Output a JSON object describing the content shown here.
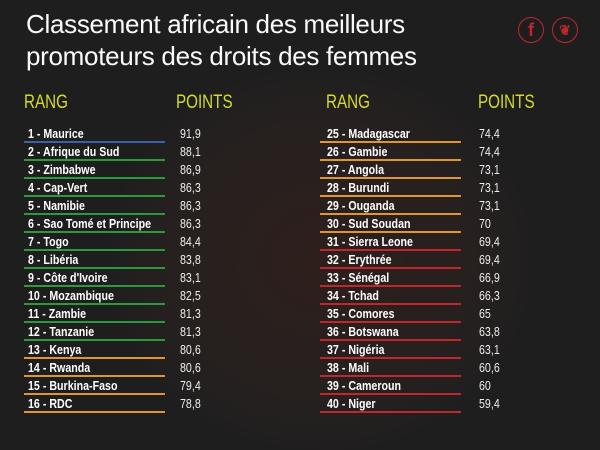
{
  "title": [
    "Classement africain des meilleurs",
    "promoteurs des droits des femmes"
  ],
  "social": [
    {
      "icon": "facebook-icon",
      "glyph": "f"
    },
    {
      "icon": "twitter-icon",
      "glyph": "🐦"
    }
  ],
  "headers": {
    "rank": "RANG",
    "points": "POINTS"
  },
  "colors": {
    "blue": "#3d5ea8",
    "green": "#2c9a3c",
    "orange": "#e0962a",
    "red": "#c0272d",
    "header": "#d4dc2a"
  },
  "left": [
    {
      "label": "1 - Maurice",
      "points": "91,9",
      "color": "blue"
    },
    {
      "label": "2 - Afrique du Sud",
      "points": "88,1",
      "color": "green"
    },
    {
      "label": "3 - Zimbabwe",
      "points": "86,9",
      "color": "green"
    },
    {
      "label": "4 - Cap-Vert",
      "points": "86,3",
      "color": "green"
    },
    {
      "label": "5 - Namibie",
      "points": "86,3",
      "color": "green"
    },
    {
      "label": "6 - Sao Tomé et Principe",
      "points": "86,3",
      "color": "green"
    },
    {
      "label": "7 - Togo",
      "points": "84,4",
      "color": "green"
    },
    {
      "label": "8 - Libéria",
      "points": "83,8",
      "color": "green"
    },
    {
      "label": "9 - Côte d'Ivoire",
      "points": "83,1",
      "color": "green"
    },
    {
      "label": "10 - Mozambique",
      "points": "82,5",
      "color": "green"
    },
    {
      "label": "11 - Zambie",
      "points": "81,3",
      "color": "green"
    },
    {
      "label": "12 - Tanzanie",
      "points": "81,3",
      "color": "green"
    },
    {
      "label": "13 - Kenya",
      "points": "80,6",
      "color": "orange"
    },
    {
      "label": "14 - Rwanda",
      "points": "80,6",
      "color": "orange"
    },
    {
      "label": "15 - Burkina-Faso",
      "points": "79,4",
      "color": "orange"
    },
    {
      "label": "16 - RDC",
      "points": "78,8",
      "color": "orange"
    }
  ],
  "right": [
    {
      "label": "25 - Madagascar",
      "points": "74,4",
      "color": "orange"
    },
    {
      "label": "26 - Gambie",
      "points": "74,4",
      "color": "orange"
    },
    {
      "label": "27 - Angola",
      "points": "73,1",
      "color": "orange"
    },
    {
      "label": "28 - Burundi",
      "points": "73,1",
      "color": "orange"
    },
    {
      "label": "29 - Ouganda",
      "points": "73,1",
      "color": "orange"
    },
    {
      "label": "30 - Sud Soudan",
      "points": "70",
      "color": "orange"
    },
    {
      "label": "31 - Sierra Leone",
      "points": "69,4",
      "color": "red"
    },
    {
      "label": "32 - Erythrée",
      "points": "69,4",
      "color": "red"
    },
    {
      "label": "33 - Sénégal",
      "points": "66,9",
      "color": "red"
    },
    {
      "label": "34 - Tchad",
      "points": "66,3",
      "color": "red"
    },
    {
      "label": "35 - Comores",
      "points": "65",
      "color": "red"
    },
    {
      "label": "36 - Botswana",
      "points": "63,8",
      "color": "red"
    },
    {
      "label": "37 - Nigéria",
      "points": "63,1",
      "color": "red"
    },
    {
      "label": "38 - Mali",
      "points": "60,6",
      "color": "red"
    },
    {
      "label": "39 - Cameroun",
      "points": "60",
      "color": "red"
    },
    {
      "label": "40 - Niger",
      "points": "59,4",
      "color": "red"
    }
  ]
}
